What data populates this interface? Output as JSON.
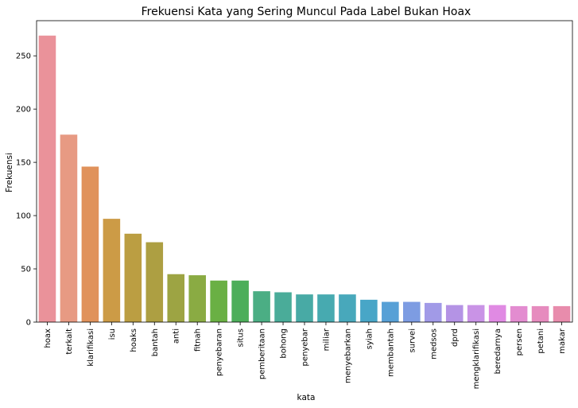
{
  "chart_data": {
    "type": "bar",
    "title": "Frekuensi Kata yang Sering Muncul Pada Label Bukan Hoax",
    "xlabel": "kata",
    "ylabel": "Frekuensi",
    "ylim": [
      0,
      283
    ],
    "yticks": [
      0,
      50,
      100,
      150,
      200,
      250
    ],
    "grid": false,
    "categories": [
      "hoax",
      "terkait",
      "klarifikasi",
      "isu",
      "hoaks",
      "bantah",
      "anti",
      "fitnah",
      "penyebaran",
      "situs",
      "pemberitaan",
      "bohong",
      "penyebar",
      "miliar",
      "menyebarkan",
      "syiah",
      "membantah",
      "survei",
      "medsos",
      "dprd",
      "mengklarifikasi",
      "beredarnya",
      "persen",
      "petani",
      "makar"
    ],
    "values": [
      269,
      176,
      146,
      97,
      83,
      75,
      45,
      44,
      39,
      39,
      29,
      28,
      26,
      26,
      26,
      21,
      19,
      19,
      18,
      16,
      16,
      16,
      15,
      15,
      15
    ],
    "colors": [
      "#ea929a",
      "#e79a83",
      "#e0925b",
      "#cc9b46",
      "#bb9e42",
      "#ad9f42",
      "#9da443",
      "#8aab43",
      "#6ab044",
      "#4cae5a",
      "#4bae84",
      "#4aac99",
      "#48aaa5",
      "#47aab0",
      "#48a8bb",
      "#48a6c7",
      "#57a0d6",
      "#7d9ce2",
      "#a19ae7",
      "#b493e5",
      "#c993e6",
      "#e08ae3",
      "#e38cd0",
      "#e68bbe",
      "#e88cac"
    ]
  }
}
